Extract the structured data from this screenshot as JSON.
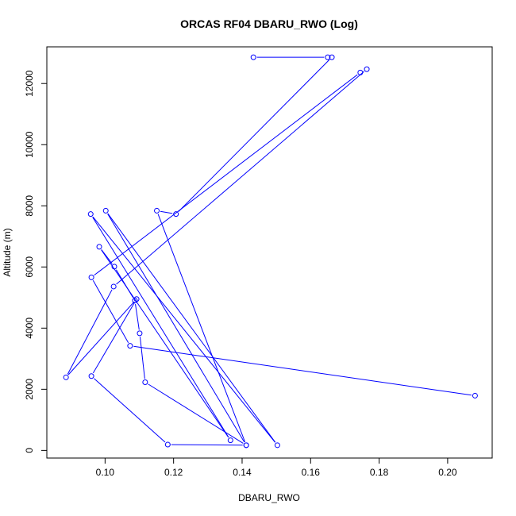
{
  "chart_data": {
    "type": "line",
    "title": "ORCAS RF04 DBARU_RWO (Log)",
    "xlabel": "DBARU_RWO",
    "ylabel": "Altitude (m)",
    "xlim": [
      0.083,
      0.213
    ],
    "ylim": [
      -250,
      13200
    ],
    "xticks": [
      0.1,
      0.12,
      0.14,
      0.16,
      0.18,
      0.2
    ],
    "xtick_labels": [
      "0.10",
      "0.12",
      "0.14",
      "0.16",
      "0.18",
      "0.20"
    ],
    "yticks": [
      0,
      2000,
      4000,
      6000,
      8000,
      10000,
      12000
    ],
    "ytick_labels": [
      "0",
      "2000",
      "4000",
      "6000",
      "8000",
      "10000",
      "12000"
    ],
    "series_color": "#0000ff",
    "grid": false,
    "markers": "open-circle",
    "points": [
      {
        "x": 0.1433,
        "y": 12860
      },
      {
        "x": 0.165,
        "y": 12860
      },
      {
        "x": 0.1662,
        "y": 12860
      },
      {
        "x": 0.1207,
        "y": 7730
      },
      {
        "x": 0.1151,
        "y": 7840
      },
      {
        "x": 0.1412,
        "y": 170
      },
      {
        "x": 0.1002,
        "y": 7840
      },
      {
        "x": 0.1503,
        "y": 170
      },
      {
        "x": 0.0958,
        "y": 7730
      },
      {
        "x": 0.1366,
        "y": 330
      },
      {
        "x": 0.0983,
        "y": 6660
      },
      {
        "x": 0.1027,
        "y": 6010
      },
      {
        "x": 0.1087,
        "y": 4900
      },
      {
        "x": 0.1101,
        "y": 3830
      },
      {
        "x": 0.1117,
        "y": 2230
      },
      {
        "x": 0.1412,
        "y": 170
      },
      {
        "x": 0.1183,
        "y": 190
      },
      {
        "x": 0.096,
        "y": 2430
      },
      {
        "x": 0.1092,
        "y": 4950
      },
      {
        "x": 0.0886,
        "y": 2390
      },
      {
        "x": 0.1025,
        "y": 5360
      },
      {
        "x": 0.1764,
        "y": 12470
      },
      {
        "x": 0.1745,
        "y": 12360
      },
      {
        "x": 0.096,
        "y": 5660
      },
      {
        "x": 0.1073,
        "y": 3420
      },
      {
        "x": 0.208,
        "y": 1790
      }
    ]
  }
}
